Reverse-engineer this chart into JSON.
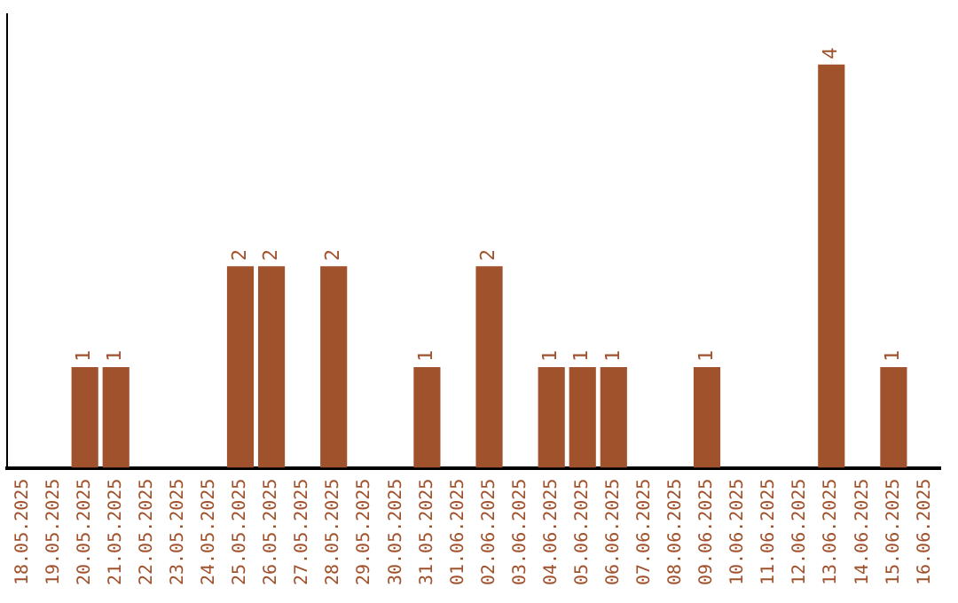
{
  "chart_data": {
    "type": "bar",
    "categories": [
      "18.05.2025",
      "19.05.2025",
      "20.05.2025",
      "21.05.2025",
      "22.05.2025",
      "23.05.2025",
      "24.05.2025",
      "25.05.2025",
      "26.05.2025",
      "27.05.2025",
      "28.05.2025",
      "29.05.2025",
      "30.05.2025",
      "31.05.2025",
      "01.06.2025",
      "02.06.2025",
      "03.06.2025",
      "04.06.2025",
      "05.06.2025",
      "06.06.2025",
      "07.06.2025",
      "08.06.2025",
      "09.06.2025",
      "10.06.2025",
      "11.06.2025",
      "12.06.2025",
      "13.06.2025",
      "14.06.2025",
      "15.06.2025",
      "16.06.2025"
    ],
    "values": [
      0,
      0,
      1,
      1,
      0,
      0,
      0,
      2,
      2,
      0,
      2,
      0,
      0,
      1,
      0,
      2,
      0,
      1,
      1,
      1,
      0,
      0,
      1,
      0,
      0,
      0,
      4,
      0,
      1,
      0
    ],
    "value_labels": [
      null,
      null,
      "1",
      "1",
      null,
      null,
      null,
      "2",
      "2",
      null,
      "2",
      null,
      null,
      "1",
      null,
      "2",
      null,
      "1",
      "1",
      "1",
      null,
      null,
      "1",
      null,
      null,
      null,
      "4",
      null,
      "1",
      null
    ],
    "color": "#a0522d",
    "grid": false,
    "legend": false,
    "tick_labels": "x"
  }
}
